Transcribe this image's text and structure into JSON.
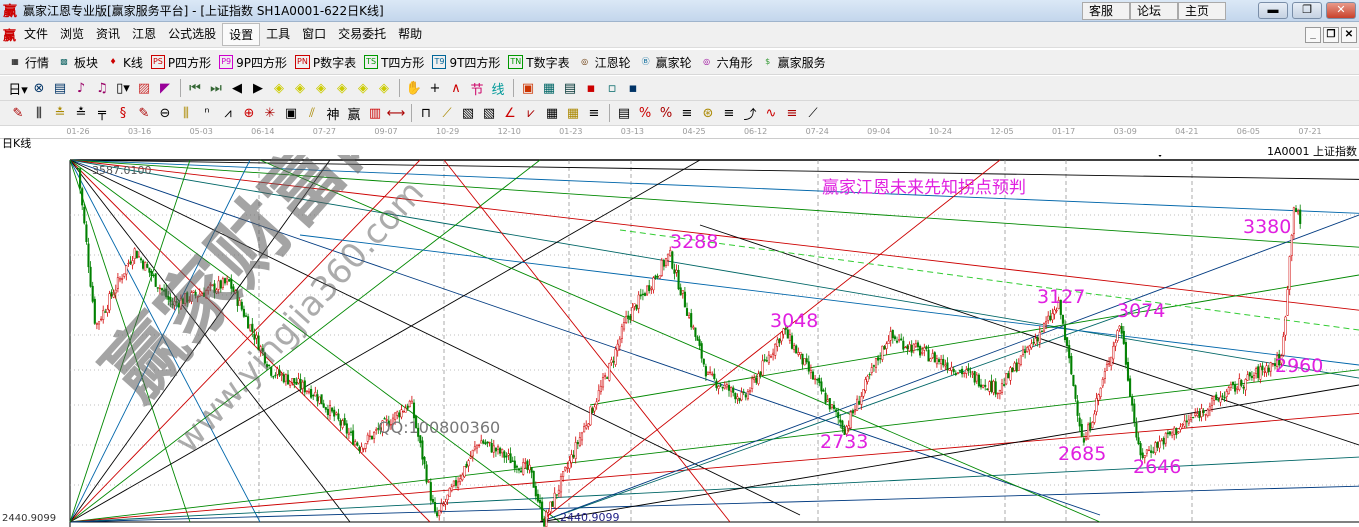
{
  "window": {
    "logo": "赢",
    "title": "赢家江恩专业版[赢家服务平台] - [上证指数  SH1A0001-622日K线]",
    "links": [
      "客服",
      "论坛",
      "主页"
    ],
    "controls": [
      "minimize",
      "restore",
      "close"
    ]
  },
  "menu": {
    "logo": "赢",
    "items": [
      "文件",
      "浏览",
      "资讯",
      "江恩",
      "公式选股",
      "设置",
      "工具",
      "窗口",
      "交易委托",
      "帮助"
    ],
    "active": "设置",
    "mdi_controls": [
      "_",
      "❐",
      "✕"
    ]
  },
  "toolbar1": [
    {
      "icon": "▦",
      "label": "行情",
      "color": "#000"
    },
    {
      "icon": "▩",
      "label": "板块",
      "color": "#1a6a6a"
    },
    {
      "icon": "♦",
      "label": "K线",
      "color": "#c00"
    },
    {
      "icon": "PS",
      "label": "P四方形",
      "color": "#c00"
    },
    {
      "icon": "P9",
      "label": "9P四方形",
      "color": "#c0c"
    },
    {
      "icon": "PN",
      "label": "P数字表",
      "color": "#c00"
    },
    {
      "icon": "TS",
      "label": "T四方形",
      "color": "#090"
    },
    {
      "icon": "T9",
      "label": "9T四方形",
      "color": "#069"
    },
    {
      "icon": "TN",
      "label": "T数字表",
      "color": "#090"
    },
    {
      "icon": "◎",
      "label": "江恩轮",
      "color": "#630"
    },
    {
      "icon": "Ⓑ",
      "label": "赢家轮",
      "color": "#069"
    },
    {
      "icon": "◎",
      "label": "六角形",
      "color": "#909"
    },
    {
      "icon": "$",
      "label": "赢家服务",
      "color": "#393"
    }
  ],
  "toolbar2_icons": [
    "period-day",
    "cycle",
    "notes",
    "volume-3",
    "volume-9",
    "candle-type",
    "gann-box",
    "color-fill",
    "first-bar",
    "last-bar",
    "scroll-left",
    "scroll-right",
    "zoom-left",
    "zoom-right",
    "expand-h",
    "compress-h",
    "expand-all",
    "expand-v",
    "hand",
    "crosshair",
    "trend-line",
    "node",
    "gann-line",
    "calendar",
    "calculator",
    "report",
    "save",
    "network",
    "print"
  ],
  "toolbar3_icons": [
    "pen",
    "grid",
    "gold-1",
    "gold-2",
    "fork",
    "spiral",
    "pen-grid",
    "circle-measure",
    "grid-2",
    "n2",
    "triangle",
    "target",
    "star",
    "square-grid",
    "angle",
    "divine",
    "winner",
    "bars",
    "measure",
    "box",
    "fan",
    "square-fan",
    "square-fan-2",
    "angle-2",
    "zigzag",
    "mesh",
    "mesh-2",
    "parallel",
    "table",
    "percent-fan",
    "percent",
    "percent-line",
    "gold-circle",
    "gold-line",
    "arrow-pen",
    "wave",
    "gold-3",
    "angle-3"
  ],
  "date_axis": [
    "01-26",
    "03-16",
    "05-03",
    "06-14",
    "07-27",
    "09-07",
    "10-29",
    "12-10",
    "01-23",
    "03-13",
    "04-25",
    "06-12",
    "07-24",
    "09-04",
    "10-24",
    "12-05",
    "01-17",
    "03-09",
    "04-21",
    "06-05",
    "07-21"
  ],
  "chart_header": {
    "period": "日K线",
    "symbol": "1A0001  上证指数"
  },
  "chart_data": {
    "type": "candlestick",
    "title": "赢家江恩未来先知拐点预判",
    "ylim": [
      2440.9099,
      3587.01
    ],
    "top_label": "3587.0100",
    "bottom_label": "2440.9099",
    "low_label": "2440.9099",
    "annotations": [
      {
        "text": "3288",
        "price": 3288
      },
      {
        "text": "3048",
        "price": 3048
      },
      {
        "text": "2733",
        "price": 2733
      },
      {
        "text": "3127",
        "price": 3127
      },
      {
        "text": "3074",
        "price": 3074
      },
      {
        "text": "2685",
        "price": 2685
      },
      {
        "text": "2646",
        "price": 2646
      },
      {
        "text": "3380",
        "price": 3380
      },
      {
        "text": "2960",
        "price": 2960
      }
    ],
    "path": [
      [
        "2018-01-26",
        3560
      ],
      [
        "2018-02-09",
        3060
      ],
      [
        "2018-03-12",
        3300
      ],
      [
        "2018-04-10",
        3130
      ],
      [
        "2018-05-22",
        3200
      ],
      [
        "2018-06-20",
        2920
      ],
      [
        "2018-07-20",
        2850
      ],
      [
        "2018-08-20",
        2680
      ],
      [
        "2018-09-28",
        2820
      ],
      [
        "2018-10-19",
        2450
      ],
      [
        "2018-11-20",
        2700
      ],
      [
        "2018-12-25",
        2600
      ],
      [
        "2019-01-04",
        2441
      ],
      [
        "2019-02-25",
        2950
      ],
      [
        "2019-03-08",
        3080
      ],
      [
        "2019-04-08",
        3288
      ],
      [
        "2019-05-06",
        2900
      ],
      [
        "2019-06-03",
        2830
      ],
      [
        "2019-07-01",
        3048
      ],
      [
        "2019-08-12",
        2733
      ],
      [
        "2019-09-12",
        3030
      ],
      [
        "2019-12-03",
        2860
      ],
      [
        "2020-01-14",
        3127
      ],
      [
        "2020-02-03",
        2685
      ],
      [
        "2020-03-05",
        3074
      ],
      [
        "2020-03-19",
        2646
      ],
      [
        "2020-05-20",
        2850
      ],
      [
        "2020-06-30",
        2960
      ],
      [
        "2020-07-09",
        3450
      ],
      [
        "2020-07-14",
        3380
      ]
    ],
    "up_color": "#d00000",
    "down_color": "#008000",
    "annotation_color": "#e020e0"
  },
  "overlay": {
    "qq": "QQ:100800360",
    "watermark_name": "赢家财富网",
    "watermark_url": "www.yingjia360.com"
  }
}
